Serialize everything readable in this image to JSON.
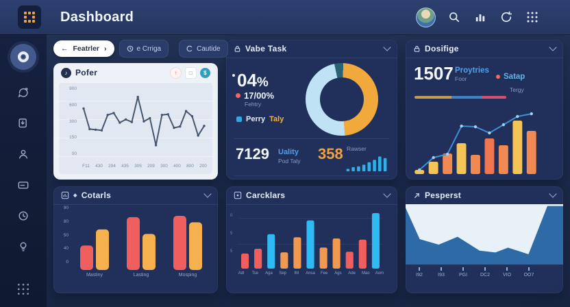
{
  "app": {
    "title": "Dashboard"
  },
  "header": {
    "icons": [
      "user-avatar",
      "search",
      "stats",
      "refresh",
      "apps-grid"
    ]
  },
  "filters": {
    "pager": {
      "prev": "←",
      "label": "Featrler",
      "next": "›"
    },
    "buttons": [
      {
        "icon": "clock-icon",
        "label": "e Crriga"
      },
      {
        "icon": "circle-icon",
        "label": "Cautide"
      }
    ]
  },
  "panels": {
    "pofer": {
      "title": "Pofer",
      "chart_data": {
        "type": "line",
        "title": "Pofer",
        "y_ticks": [
          "900",
          "600",
          "300",
          "150",
          "00"
        ],
        "x_ticks": [
          "F11",
          "430",
          "294",
          "435",
          "305",
          "209",
          "300",
          "400",
          "800",
          "200"
        ],
        "values": [
          72,
          40,
          39,
          38,
          62,
          65,
          50,
          55,
          51,
          90,
          52,
          57,
          15,
          62,
          63,
          42,
          44,
          68,
          60,
          30,
          45
        ],
        "ylim": [
          0,
          100
        ],
        "color": "#45566e"
      }
    },
    "vabe_task": {
      "title": "Vabe Task",
      "stat_primary": {
        "value": "04",
        "unit": "%"
      },
      "stat_secondary": {
        "value": "17/00",
        "unit": "%",
        "caption": "Fehtry"
      },
      "legend": {
        "word1": "Perry",
        "word2": "Taly"
      },
      "chart_data": {
        "type": "pie",
        "start_deg": -12,
        "segments": [
          {
            "name": "teal",
            "value": 4,
            "color": "#2a6375"
          },
          {
            "name": "orange",
            "value": 48,
            "color": "#f2a93c"
          },
          {
            "name": "light-blue",
            "value": 48,
            "color": "#bfe2f4"
          }
        ]
      },
      "totals": {
        "left": {
          "value": "7129",
          "label": "Uality",
          "caption": "Pod Taly"
        },
        "right": {
          "value": "358",
          "label": "Rawser"
        }
      },
      "mini_chart": {
        "type": "bar",
        "values": [
          3,
          5,
          6,
          8,
          11,
          14,
          18,
          16
        ],
        "color": "#2fb0e8",
        "ylim": [
          0,
          20
        ],
        "bw": 0.6,
        "rx": 1
      }
    },
    "dosifige": {
      "title": "Dosifige",
      "stat": {
        "value": "1507",
        "label": "Proytries",
        "caption": "Foor"
      },
      "legend": {
        "label": "Satap",
        "caption": "Tergy"
      },
      "progress": {
        "segments": [
          {
            "color": "#c99a54",
            "pct": 40
          },
          {
            "color": "#3b86c8",
            "pct": 33
          },
          {
            "color": "#d8506e",
            "pct": 27
          }
        ]
      },
      "chart_data": {
        "type": "bar+line",
        "bars": [
          6,
          18,
          30,
          45,
          28,
          52,
          42,
          78,
          63
        ],
        "bar_colors": [
          "#f6c454",
          "#f6c454",
          "#f08a52",
          "#f6c454",
          "#f08a52",
          "#f0764f",
          "#f08a52",
          "#f6c454",
          "#f08a52"
        ],
        "line": [
          6,
          24,
          29,
          70,
          69,
          60,
          72,
          84,
          88
        ],
        "line_color": "#3f8fd6",
        "dot_color": "#a8cdf0",
        "ylim": [
          0,
          100
        ],
        "bw": 0.68,
        "rx": 2.5
      }
    },
    "cotarls": {
      "title": "Cotarls",
      "chart_data": {
        "type": "grouped-bar",
        "y_ticks": [
          "90",
          "80",
          "50",
          "40",
          "0"
        ],
        "categories": [
          "Mastiny",
          "Lasting",
          "Mosping"
        ],
        "series": [
          {
            "name": "series-red",
            "color": "#f15e5e",
            "values": [
              38,
              82,
              84
            ]
          },
          {
            "name": "series-yellow",
            "color": "#f6b14e",
            "values": [
              63,
              56,
              74
            ]
          }
        ],
        "ylim": [
          0,
          100
        ]
      }
    },
    "carcklars": {
      "title": "Carcklars",
      "chart_data": {
        "type": "bar",
        "y_ticks": [
          "0",
          "5",
          "5"
        ],
        "categories": [
          "Adl",
          "Tse",
          "Aga",
          "Sep",
          "IM",
          "Ansa",
          "Fee",
          "Ags",
          "Ade",
          "Mao",
          "Aom"
        ],
        "values": [
          25,
          33,
          57,
          27,
          52,
          80,
          35,
          50,
          28,
          48,
          92
        ],
        "colors": [
          "#f15e5e",
          "#f15e5e",
          "#2fb9f2",
          "#f2994f",
          "#f2994f",
          "#2fb9f2",
          "#f2994f",
          "#f2994f",
          "#f15e5e",
          "#f15e5e",
          "#2fb9f2"
        ],
        "ylim": [
          0,
          100
        ],
        "bw": 0.58,
        "rx": 2.5
      }
    },
    "pesperst": {
      "title": "Pesperst",
      "chart_data": {
        "type": "area",
        "x_ticks": [
          "I92",
          "I93",
          "PGI",
          "DC2",
          "VIO",
          "OO7"
        ],
        "boundary": [
          [
            0,
            6
          ],
          [
            9,
            58
          ],
          [
            21,
            67
          ],
          [
            33,
            54
          ],
          [
            47,
            77
          ],
          [
            57,
            80
          ],
          [
            65,
            72
          ],
          [
            78,
            83
          ],
          [
            90,
            3
          ],
          [
            100,
            3
          ]
        ],
        "fill": "#2e6ba6",
        "bg": "#e9f1f8"
      }
    }
  }
}
